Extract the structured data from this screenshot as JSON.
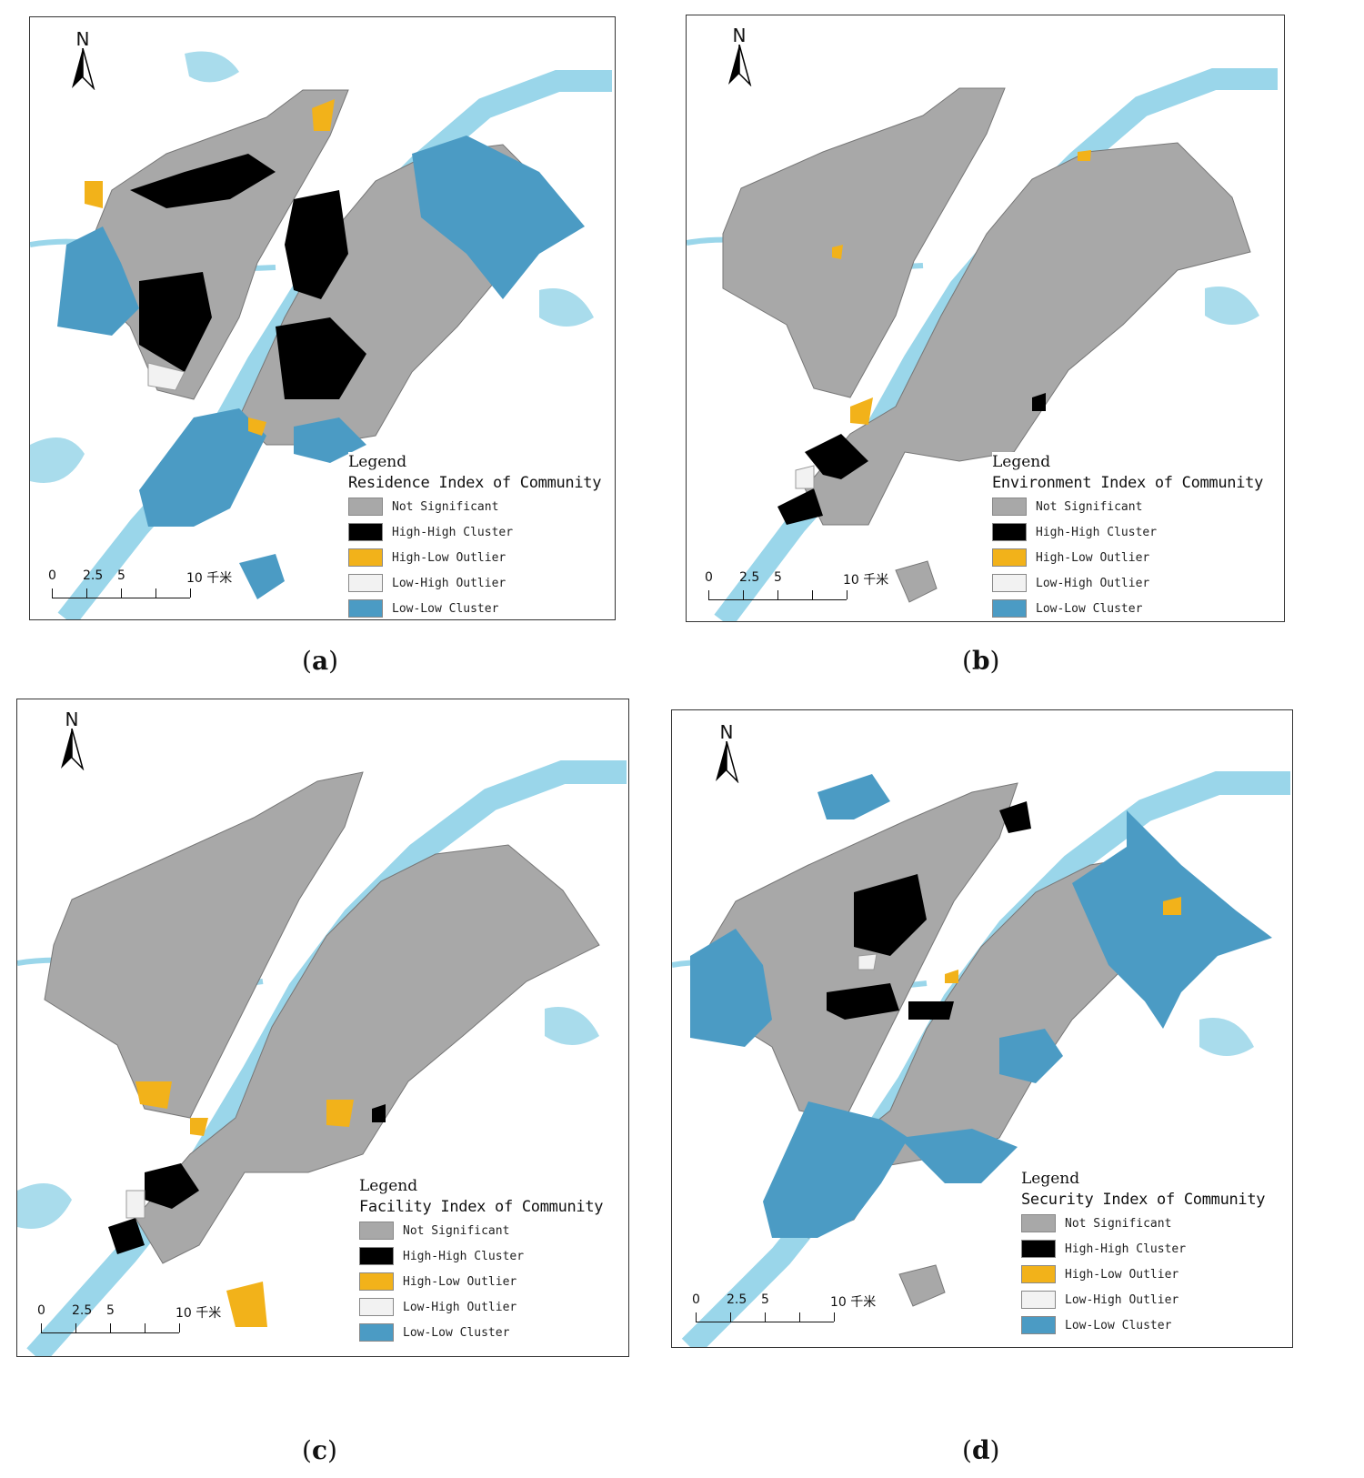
{
  "colors": {
    "not_significant": "#a8a8a8",
    "high_high": "#000000",
    "high_low": "#f2b21a",
    "low_high": "#f2f2f2",
    "low_low": "#4b9bc4",
    "water": "#a9dcec",
    "river": "#9ad6ea"
  },
  "common": {
    "north_label": "N",
    "legend_title": "Legend",
    "legend_items": [
      {
        "label": "Not Significant",
        "key": "not_significant"
      },
      {
        "label": "High-High Cluster",
        "key": "high_high"
      },
      {
        "label": "High-Low Outlier",
        "key": "high_low"
      },
      {
        "label": "Low-High Outlier",
        "key": "low_high"
      },
      {
        "label": "Low-Low Cluster",
        "key": "low_low"
      }
    ],
    "scale_ticks": [
      "0",
      "2.5",
      "5",
      "10 千米"
    ]
  },
  "panels": [
    {
      "id": "a",
      "caption_letter": "a",
      "legend_subtitle": "Residence Index of Community"
    },
    {
      "id": "b",
      "caption_letter": "b",
      "legend_subtitle": "Environment Index of Community"
    },
    {
      "id": "c",
      "caption_letter": "c",
      "legend_subtitle": "Facility Index of Community"
    },
    {
      "id": "d",
      "caption_letter": "d",
      "legend_subtitle": "Security Index of Community"
    }
  ]
}
